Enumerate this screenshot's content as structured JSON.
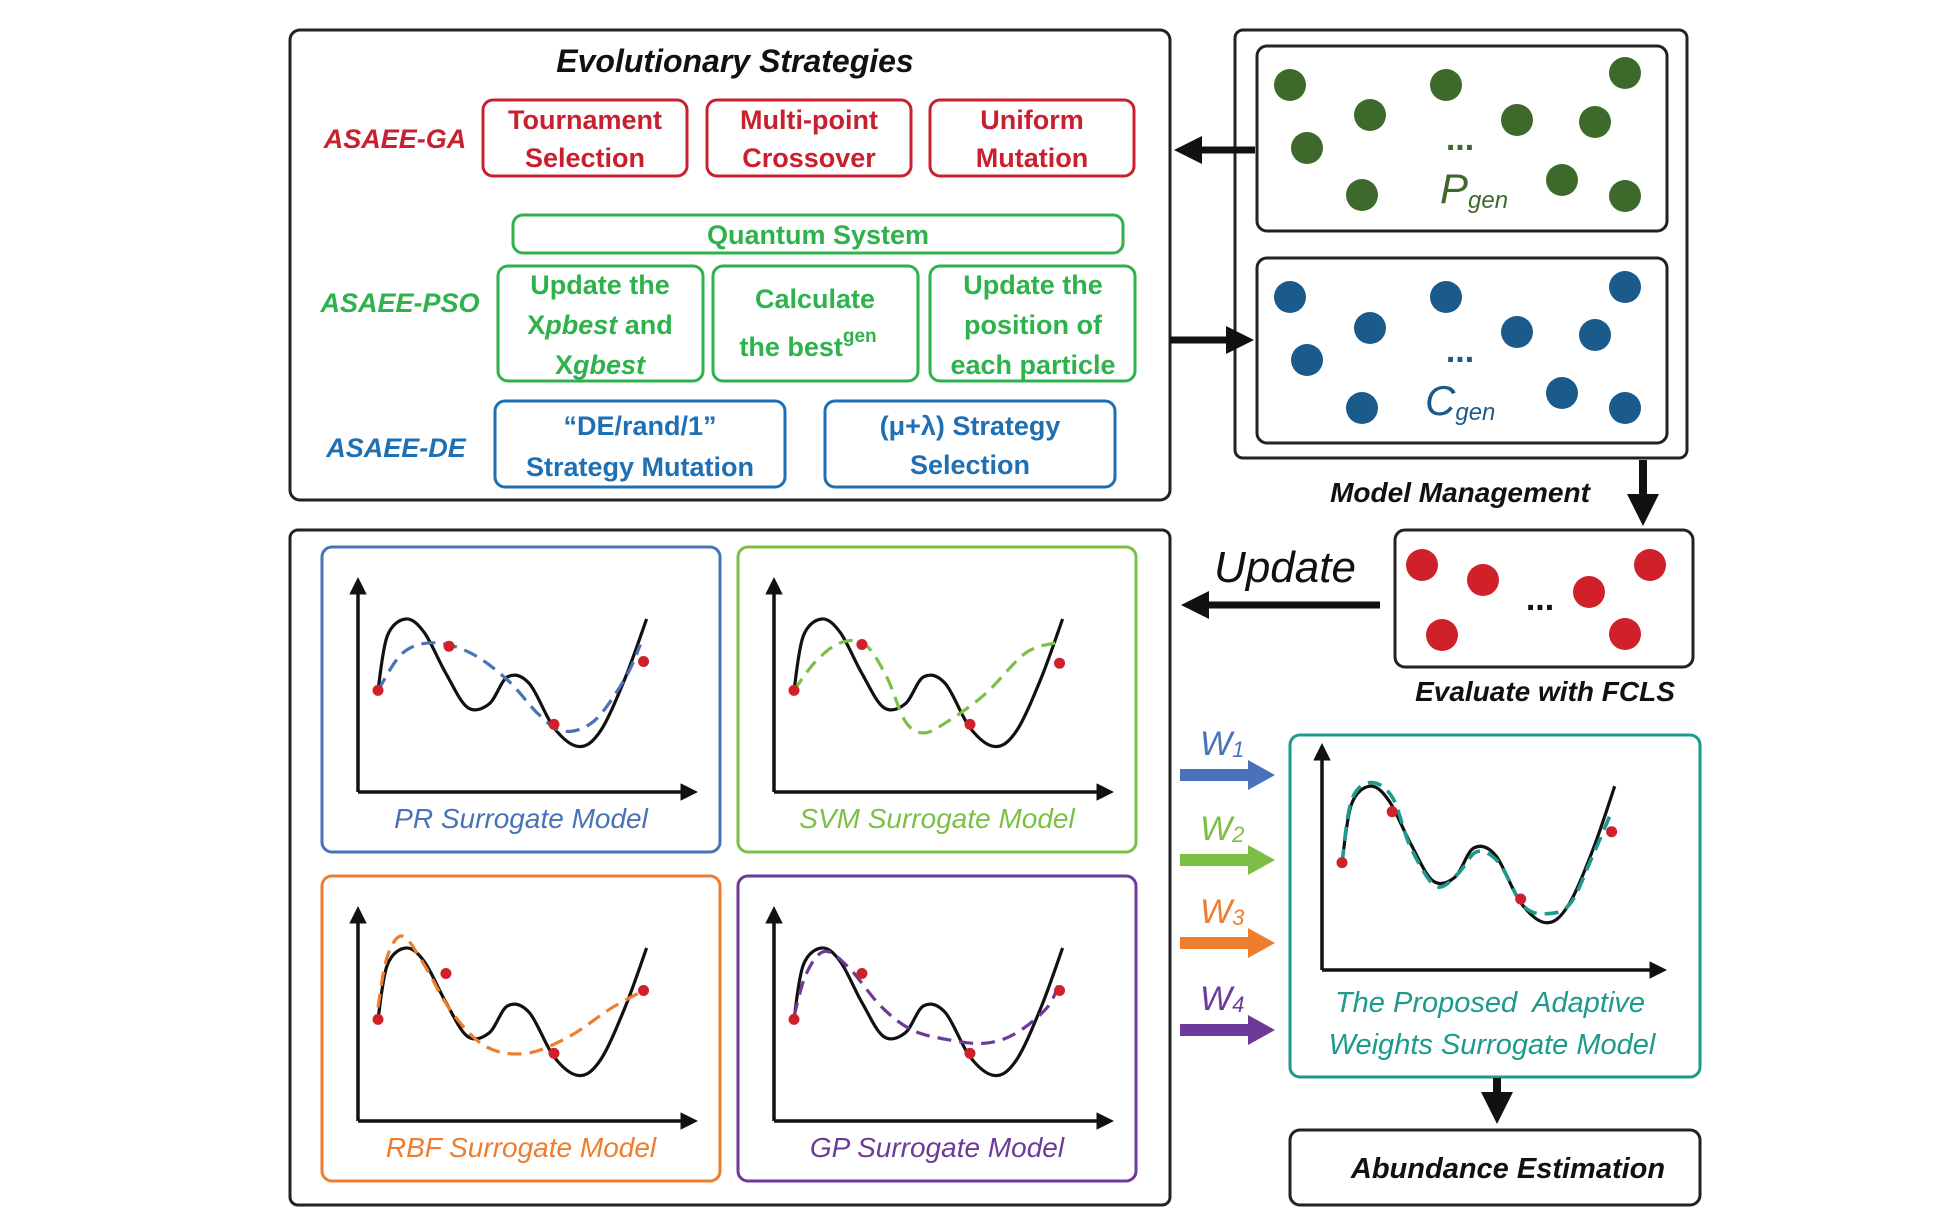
{
  "strategies": {
    "title": "Evolutionary Strategies",
    "ga": {
      "label": "ASAEE-GA",
      "boxes": [
        {
          "line1": "Tournament",
          "line2": "Selection"
        },
        {
          "line1": "Multi-point",
          "line2": "Crossover"
        },
        {
          "line1": "Uniform",
          "line2": "Mutation"
        }
      ]
    },
    "pso": {
      "label": "ASAEE-PSO",
      "quantum": "Quantum System",
      "box1": {
        "line1": "Update the",
        "line2_a": "X",
        "line2_b": "pbest",
        "line2_c": " and",
        "line3_a": "X",
        "line3_b": "gbest"
      },
      "box2": {
        "line1": "Calculate",
        "line2": "the best",
        "sup": "gen"
      },
      "box3": {
        "line1": "Update the",
        "line2": "position of",
        "line3": "each particle"
      }
    },
    "de": {
      "label": "ASAEE-DE",
      "boxes": [
        {
          "line1": "“DE/rand/1”",
          "line2": "Strategy Mutation"
        },
        {
          "line1": "(μ+λ) Strategy",
          "line2": "Selection"
        }
      ]
    }
  },
  "populations": {
    "ellipsis": "...",
    "p": {
      "main": "P",
      "sub": "gen"
    },
    "c": {
      "main": "C",
      "sub": "gen"
    },
    "management_label": "Model Management"
  },
  "evaluate": {
    "ellipsis": "...",
    "label": "Evaluate with FCLS"
  },
  "update_label": "Update",
  "models": [
    {
      "label": "PR Surrogate Model"
    },
    {
      "label": "SVM Surrogate Model"
    },
    {
      "label": "RBF Surrogate Model"
    },
    {
      "label": "GP Surrogate Model"
    }
  ],
  "weights": [
    {
      "main": "W",
      "sub": "1"
    },
    {
      "main": "W",
      "sub": "2"
    },
    {
      "main": "W",
      "sub": "3"
    },
    {
      "main": "W",
      "sub": "4"
    }
  ],
  "adaptive": {
    "line1": "The Proposed  Adaptive",
    "line2": "Weights Surrogate Model"
  },
  "abundance": "Abundance Estimation",
  "colors": {
    "ga": "#c8202f",
    "pso": "#2eb24b",
    "de": "#1f6fb3",
    "pr": "#4a72b8",
    "svm": "#7cbf45",
    "rbf": "#ef7d2e",
    "gp": "#6e3a99",
    "adaptive": "#1d9a8c",
    "pop_green": "#3d6a2a",
    "pop_blue": "#1a5b8c",
    "eval_red": "#d0202a"
  }
}
